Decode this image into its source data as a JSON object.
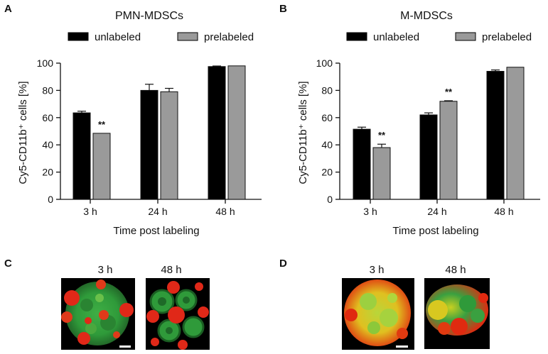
{
  "colors": {
    "unlabeled": "#000000",
    "prelabeled": "#9a9a9a",
    "axis": "#111111"
  },
  "panels": {
    "A": "A",
    "B": "B",
    "C": "C",
    "D": "D"
  },
  "chart_data": [
    {
      "id": "A",
      "type": "bar",
      "title": "PMN-MDSCs",
      "categories": [
        "3 h",
        "24 h",
        "48 h"
      ],
      "series": [
        {
          "name": "unlabeled",
          "values": [
            63.5,
            80,
            97.5
          ],
          "errors": [
            1.2,
            4.5,
            0.4
          ]
        },
        {
          "name": "prelabeled",
          "values": [
            48.5,
            79,
            98
          ],
          "errors": [
            0,
            2.5,
            0
          ]
        }
      ],
      "significance": [
        {
          "category": "3 h",
          "series": "prelabeled",
          "label": "**"
        }
      ],
      "xlabel": "Time post labeling",
      "ylabel": "Cy5-CD11b⁺ cells [%]",
      "ylim": [
        0,
        100
      ],
      "yticks": [
        0,
        20,
        40,
        60,
        80,
        100
      ],
      "legend": "top"
    },
    {
      "id": "B",
      "type": "bar",
      "title": "M-MDSCs",
      "categories": [
        "3 h",
        "24 h",
        "48 h"
      ],
      "series": [
        {
          "name": "unlabeled",
          "values": [
            51.5,
            62,
            94
          ],
          "errors": [
            1.5,
            1.5,
            1
          ]
        },
        {
          "name": "prelabeled",
          "values": [
            38,
            72,
            97
          ],
          "errors": [
            2.5,
            0.4,
            0
          ]
        }
      ],
      "significance": [
        {
          "category": "3 h",
          "series": "prelabeled",
          "label": "**"
        },
        {
          "category": "24 h",
          "series": "prelabeled",
          "label": "**"
        }
      ],
      "xlabel": "Time post labeling",
      "ylabel": "Cy5-CD11b⁺ cells [%]",
      "ylim": [
        0,
        100
      ],
      "yticks": [
        0,
        20,
        40,
        60,
        80,
        100
      ],
      "legend": "top"
    }
  ],
  "micrographs": {
    "C": [
      "3 h",
      "48 h"
    ],
    "D": [
      "3 h",
      "48 h"
    ]
  }
}
